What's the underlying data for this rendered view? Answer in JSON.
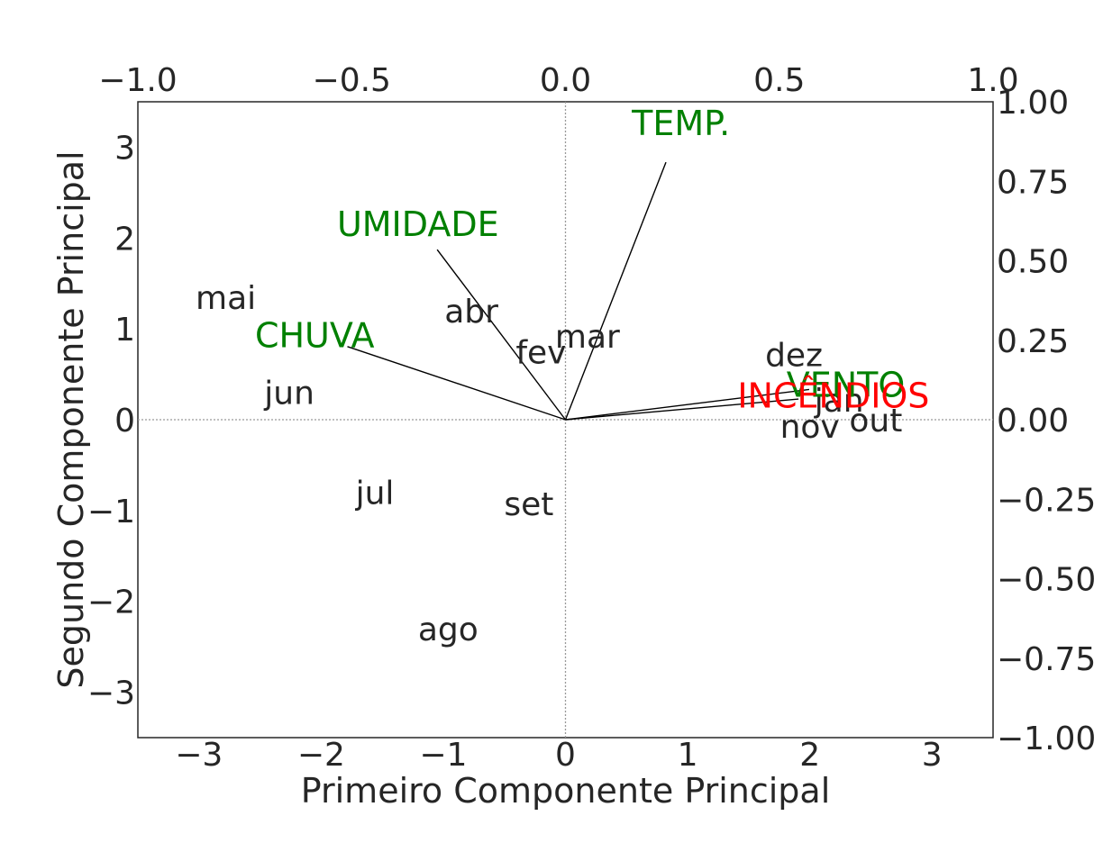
{
  "chart_data": {
    "type": "scatter",
    "subtype": "biplot",
    "title": "",
    "xlabel": "Primeiro Componente Principal",
    "ylabel": "Segundo Componente Principal",
    "xlim": [
      -3.5,
      3.5
    ],
    "ylim": [
      -3.5,
      3.5
    ],
    "x_ticks": [
      -3,
      -2,
      -1,
      0,
      1,
      2,
      3
    ],
    "y_ticks": [
      -3,
      -2,
      -1,
      0,
      1,
      2,
      3
    ],
    "x_tick_labels": [
      "−3",
      "−2",
      "−1",
      "0",
      "1",
      "2",
      "3"
    ],
    "y_tick_labels": [
      "−3",
      "−2",
      "−1",
      "0",
      "1",
      "2",
      "3"
    ],
    "top_xlim": [
      -1.0,
      1.0
    ],
    "right_ylim": [
      -1.0,
      1.0
    ],
    "top_ticks": [
      -1.0,
      -0.5,
      0.0,
      0.5,
      1.0
    ],
    "top_tick_labels": [
      "−1.0",
      "−0.5",
      "0.0",
      "0.5",
      "1.0"
    ],
    "right_ticks": [
      -1.0,
      -0.75,
      -0.5,
      -0.25,
      0.0,
      0.25,
      0.5,
      0.75,
      1.0
    ],
    "right_tick_labels": [
      "−1.00",
      "−0.75",
      "−0.50",
      "−0.25",
      "0.00",
      "0.25",
      "0.50",
      "0.75",
      "1.00"
    ],
    "grid": false,
    "reference_lines": "dotted lines at x=0 and y=0",
    "observations": [
      {
        "label": "jan",
        "x": 2.24,
        "y": 0.22
      },
      {
        "label": "fev",
        "x": -0.2,
        "y": 0.75
      },
      {
        "label": "mar",
        "x": 0.18,
        "y": 0.92
      },
      {
        "label": "abr",
        "x": -0.77,
        "y": 1.2
      },
      {
        "label": "mai",
        "x": -2.78,
        "y": 1.35
      },
      {
        "label": "jun",
        "x": -2.26,
        "y": 0.3
      },
      {
        "label": "jul",
        "x": -1.56,
        "y": -0.8
      },
      {
        "label": "ago",
        "x": -0.96,
        "y": -2.3
      },
      {
        "label": "set",
        "x": -0.3,
        "y": -0.92
      },
      {
        "label": "out",
        "x": 2.54,
        "y": 0.0
      },
      {
        "label": "nov",
        "x": 2.0,
        "y": -0.07
      },
      {
        "label": "dez",
        "x": 1.87,
        "y": 0.72
      }
    ],
    "loadings": [
      {
        "label": "TEMP.",
        "x": 0.235,
        "y": 0.81,
        "color": "#008000"
      },
      {
        "label": "UMIDADE",
        "x": -0.3,
        "y": 0.535,
        "color": "#008000"
      },
      {
        "label": "CHUVA",
        "x": -0.51,
        "y": 0.23,
        "color": "#008000"
      },
      {
        "label": "VENTO",
        "x": 0.57,
        "y": 0.095,
        "color": "#008000"
      },
      {
        "label": "INCÊNDIOS",
        "x": 0.545,
        "y": 0.065,
        "color": "#ff0000"
      }
    ],
    "colors": {
      "text": "#262626",
      "axes": "#262626",
      "variables": "#008000",
      "target": "#ff0000",
      "reference": "#999999"
    }
  }
}
